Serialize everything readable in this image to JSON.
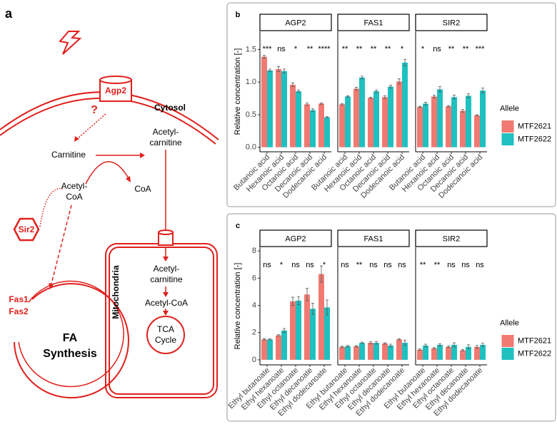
{
  "diagram": {
    "panel_label": "a",
    "receptor": "Agp2",
    "unknown": "?",
    "cytosol": "Cytosol",
    "mitochondria": "Mitochondria",
    "carnitine": "Carnitine",
    "acetyl_carnitine": [
      "Acetyl-",
      "carnitine"
    ],
    "acetyl_coa": [
      "Acetyl-",
      "CoA"
    ],
    "coa": "CoA",
    "sir2": "Sir2",
    "mito_acetyl_carnitine": [
      "Acetyl-",
      "carnitine"
    ],
    "mito_acetyl_coa": "Acetyl-CoA",
    "tca": [
      "TCA",
      "Cycle"
    ],
    "fas": [
      "Fas1",
      "Fas2"
    ],
    "fa_synthesis": [
      "FA",
      "Synthesis"
    ]
  },
  "chart_data": [
    {
      "type": "bar",
      "panel_label": "b",
      "ylabel": "Relative concentration [-]",
      "ylim": [
        -0.07,
        1.78
      ],
      "yticks": [
        {
          "value": 0,
          "label": "0.0"
        },
        {
          "value": 0.5,
          "label": "0.5"
        },
        {
          "value": 1,
          "label": "1.0"
        },
        {
          "value": 1.5,
          "label": "1.5"
        }
      ],
      "grid": false,
      "legend_title": "Allele",
      "legend": "right",
      "series": [
        {
          "name": "MTF2621",
          "color": "#f07a72"
        },
        {
          "name": "MTF2622",
          "color": "#1fc0c0"
        }
      ],
      "facets": [
        {
          "title": "AGP2",
          "categories": [
            "Butanoic acid",
            "Hexanoic acid",
            "Octanoic acid",
            "Decanoic acid",
            "Dodecanoic acid"
          ],
          "significance": [
            "***",
            "ns",
            "*",
            "**",
            "****"
          ],
          "series": [
            {
              "values": [
                1.39,
                1.2,
                0.96,
                0.66,
                0.67
              ],
              "errors": [
                0.02,
                0.04,
                0.03,
                0.02,
                0.01
              ]
            },
            {
              "values": [
                1.18,
                1.17,
                0.86,
                0.57,
                0.46
              ],
              "errors": [
                0.02,
                0.03,
                0.02,
                0.02,
                0.01
              ]
            }
          ]
        },
        {
          "title": "FAS1",
          "categories": [
            "Butanoic acid",
            "Hexanoic acid",
            "Octanoic acid",
            "Decanoic acid",
            "Dodecanoic acid"
          ],
          "significance": [
            "**",
            "**",
            "**",
            "**",
            "*"
          ],
          "series": [
            {
              "values": [
                0.66,
                0.9,
                0.76,
                0.77,
                1.01
              ],
              "errors": [
                0.01,
                0.02,
                0.01,
                0.02,
                0.04
              ]
            },
            {
              "values": [
                0.78,
                1.07,
                0.86,
                0.93,
                1.3
              ],
              "errors": [
                0.01,
                0.02,
                0.02,
                0.02,
                0.05
              ]
            }
          ]
        },
        {
          "title": "SIR2",
          "categories": [
            "Butanoic acid",
            "Hexanoic acid",
            "Octanoic acid",
            "Decanoic acid",
            "Dodecanoic acid"
          ],
          "significance": [
            "*",
            "ns",
            "**",
            "**",
            "***"
          ],
          "series": [
            {
              "values": [
                0.62,
                0.78,
                0.63,
                0.56,
                0.49
              ],
              "errors": [
                0.01,
                0.02,
                0.01,
                0.02,
                0.01
              ]
            },
            {
              "values": [
                0.67,
                0.89,
                0.77,
                0.79,
                0.87
              ],
              "errors": [
                0.02,
                0.04,
                0.03,
                0.03,
                0.04
              ]
            }
          ]
        }
      ]
    },
    {
      "type": "bar",
      "panel_label": "c",
      "ylabel": "Relative concentration [-]",
      "ylim": [
        -0.37,
        8.27
      ],
      "yticks": [
        0,
        2,
        4,
        6,
        8
      ],
      "grid": false,
      "legend_title": "Allele",
      "legend": "right",
      "series": [
        {
          "name": "MTF2621",
          "color": "#f07a72"
        },
        {
          "name": "MTF2622",
          "color": "#1fc0c0"
        }
      ],
      "facets": [
        {
          "title": "AGP2",
          "categories": [
            "Ethyl butanoate",
            "Ethyl hexanoate",
            "Ethyl octanoate",
            "Ethyl decanoate",
            "Ethyl dodecanoate"
          ],
          "significance": [
            "ns",
            "*",
            "ns",
            "ns",
            "*"
          ],
          "series": [
            {
              "values": [
                1.5,
                1.8,
                4.3,
                4.8,
                6.3
              ],
              "errors": [
                0.05,
                0.05,
                0.3,
                0.45,
                0.6
              ]
            },
            {
              "values": [
                1.5,
                2.15,
                4.35,
                3.75,
                3.85
              ],
              "errors": [
                0.05,
                0.15,
                0.3,
                0.4,
                0.55
              ]
            }
          ]
        },
        {
          "title": "FAS1",
          "categories": [
            "Ethyl butanoate",
            "Ethyl hexanoate",
            "Ethyl octanoate",
            "Ethyl decanoate",
            "Ethyl dodecanoate"
          ],
          "significance": [
            "ns",
            "**",
            "ns",
            "ns",
            "ns"
          ],
          "series": [
            {
              "values": [
                0.95,
                1.0,
                1.25,
                1.2,
                1.5
              ],
              "errors": [
                0.05,
                0.05,
                0.08,
                0.05,
                0.05
              ]
            },
            {
              "values": [
                1.0,
                1.25,
                1.25,
                1.05,
                1.25
              ],
              "errors": [
                0.05,
                0.05,
                0.1,
                0.1,
                0.2
              ]
            }
          ]
        },
        {
          "title": "SIR2",
          "categories": [
            "Ethyl butanoate",
            "Ethyl hexanoate",
            "Ethyl octanoate",
            "Ethyl decanoate",
            "Ethyl dodecanoate"
          ],
          "significance": [
            "**",
            "**",
            "ns",
            "ns",
            "ns"
          ],
          "series": [
            {
              "values": [
                0.75,
                0.85,
                0.95,
                0.7,
                0.95
              ],
              "errors": [
                0.05,
                0.05,
                0.05,
                0.05,
                0.1
              ]
            },
            {
              "values": [
                1.05,
                1.1,
                1.1,
                0.95,
                1.1
              ],
              "errors": [
                0.1,
                0.08,
                0.15,
                0.15,
                0.12
              ]
            }
          ]
        }
      ]
    }
  ]
}
